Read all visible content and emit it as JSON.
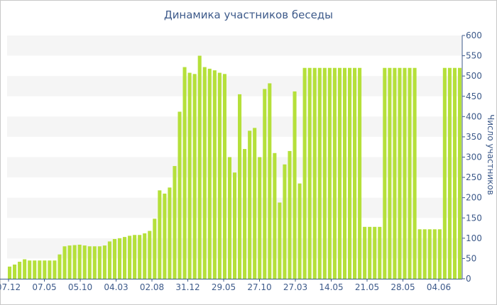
{
  "chart_data": {
    "type": "bar",
    "title": "Динамика участников беседы",
    "ylabel": "Число участников",
    "ylim": [
      0,
      600
    ],
    "yticks": [
      0,
      50,
      100,
      150,
      200,
      250,
      300,
      350,
      400,
      450,
      500,
      550,
      600
    ],
    "xtick_labels": [
      "07.12",
      "07.05",
      "05.10",
      "04.03",
      "02.08",
      "31.12",
      "29.05",
      "27.10",
      "27.03",
      "14.05",
      "21.05",
      "28.05",
      "04.06"
    ],
    "grid": true,
    "colors": {
      "bar": "#b5e03a",
      "band": "#f5f5f5",
      "text": "#3d5a8a",
      "axis": "#3d5a8a"
    },
    "values": [
      30,
      35,
      42,
      48,
      45,
      45,
      45,
      45,
      45,
      45,
      60,
      80,
      82,
      83,
      84,
      82,
      80,
      80,
      80,
      82,
      92,
      98,
      100,
      103,
      106,
      108,
      108,
      112,
      118,
      148,
      218,
      210,
      225,
      278,
      412,
      522,
      508,
      505,
      550,
      522,
      518,
      514,
      508,
      505,
      300,
      262,
      455,
      320,
      365,
      372,
      300,
      468,
      482,
      310,
      188,
      282,
      315,
      462,
      235,
      520,
      520,
      520,
      520,
      520,
      520,
      520,
      520,
      520,
      520,
      520,
      520,
      128,
      128,
      128,
      128,
      520,
      520,
      520,
      520,
      520,
      520,
      520,
      122,
      122,
      122,
      122,
      122,
      520,
      520,
      520,
      520
    ]
  }
}
